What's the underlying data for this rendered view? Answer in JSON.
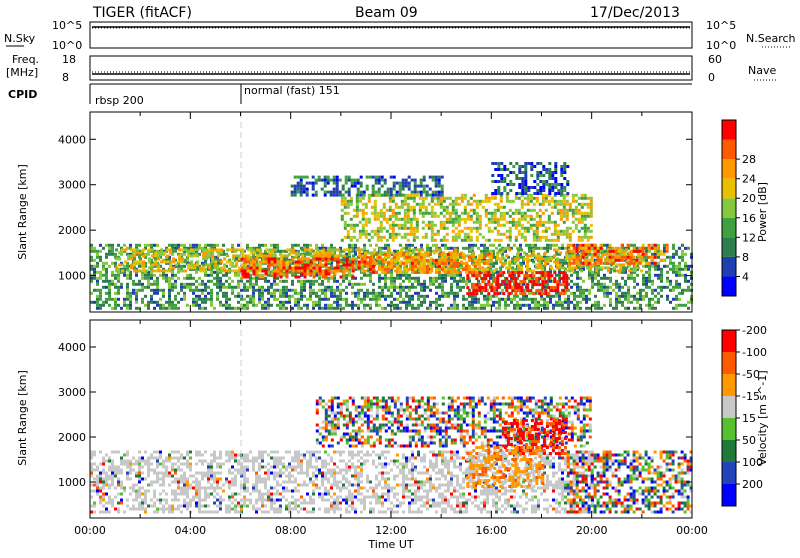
{
  "header": {
    "radar": "TIGER (fitACF)",
    "beam": "Beam 09",
    "date": "17/Dec/2013"
  },
  "top_panels": {
    "nsky_label": "N.Sky",
    "nsky_ticks": [
      "10^5",
      "10^0"
    ],
    "nsearch_label": "N.Search",
    "nsearch_ticks": [
      "10^5",
      "10^0"
    ],
    "freq_label": "Freq.",
    "freq_unit": "[MHz]",
    "freq_ticks": [
      "18",
      "8"
    ],
    "nave_label": "Nave",
    "nave_ticks": [
      "60",
      "0"
    ],
    "cpid_label": "CPID",
    "cpid_segments": [
      {
        "label": "rbsp 200",
        "start_hour": 0,
        "end_hour": 6
      },
      {
        "label": "normal (fast) 151",
        "start_hour": 6,
        "end_hour": 24
      }
    ]
  },
  "chart_data": [
    {
      "type": "heatmap",
      "name": "power-panel",
      "ylabel": "Slant Range [km]",
      "yticks": [
        "1000",
        "2000",
        "3000",
        "4000"
      ],
      "ylim": [
        200,
        4600
      ],
      "xlim": [
        0,
        24
      ],
      "colorbar": {
        "label": "Power [dB]",
        "ticks": [
          "4",
          "8",
          "12",
          "16",
          "20",
          "24",
          "28"
        ],
        "colors": [
          "#0000ff",
          "#1f3fb0",
          "#2e7d4f",
          "#3fa03f",
          "#86c83c",
          "#e8c000",
          "#ff9900",
          "#ff5a00",
          "#ff0000"
        ]
      },
      "regions": [
        {
          "x0": 0,
          "x1": 24,
          "y0": 250,
          "y1": 1700,
          "level": 0.35
        },
        {
          "x0": 1,
          "x1": 22,
          "y0": 1100,
          "y1": 1600,
          "level": 0.6
        },
        {
          "x0": 6,
          "x1": 11,
          "y0": 1000,
          "y1": 1400,
          "level": 0.85
        },
        {
          "x0": 11,
          "x1": 16,
          "y0": 1100,
          "y1": 1500,
          "level": 0.75
        },
        {
          "x0": 10,
          "x1": 20,
          "y0": 1800,
          "y1": 2800,
          "level": 0.55
        },
        {
          "x0": 8,
          "x1": 14,
          "y0": 2800,
          "y1": 3200,
          "level": 0.25
        },
        {
          "x0": 15,
          "x1": 19,
          "y0": 600,
          "y1": 1100,
          "level": 0.95
        },
        {
          "x0": 16,
          "x1": 19,
          "y0": 2800,
          "y1": 3500,
          "level": 0.2
        },
        {
          "x0": 19,
          "x1": 23,
          "y0": 1300,
          "y1": 1700,
          "level": 0.8
        }
      ]
    },
    {
      "type": "heatmap",
      "name": "velocity-panel",
      "ylabel": "Slant Range [km]",
      "xlabel": "Time UT",
      "yticks": [
        "1000",
        "2000",
        "3000",
        "4000"
      ],
      "ylim": [
        200,
        4600
      ],
      "xlim": [
        0,
        24
      ],
      "xticks": [
        "00:00",
        "04:00",
        "08:00",
        "12:00",
        "16:00",
        "20:00",
        "00:00"
      ],
      "colorbar": {
        "label": "Velocity [m s^-1]",
        "ticks": [
          "200",
          "100",
          "50",
          "15",
          "-15",
          "-50",
          "-100",
          "-200"
        ],
        "colors": [
          "#0000ff",
          "#2244bb",
          "#1f7a3a",
          "#55c030",
          "#c8c8c8",
          "#ff9900",
          "#ff5a00",
          "#ff0000"
        ]
      },
      "regions": [
        {
          "x0": 0,
          "x1": 20,
          "y0": 300,
          "y1": 1700,
          "kind": "ground"
        },
        {
          "x0": 9,
          "x1": 20,
          "y0": 1800,
          "y1": 2900,
          "kind": "mixed"
        },
        {
          "x0": 16.5,
          "x1": 19,
          "y0": 1600,
          "y1": 2400,
          "kind": "red"
        },
        {
          "x0": 15,
          "x1": 18,
          "y0": 900,
          "y1": 1800,
          "kind": "orange"
        },
        {
          "x0": 19,
          "x1": 24,
          "y0": 300,
          "y1": 1700,
          "kind": "mixed"
        }
      ]
    }
  ]
}
